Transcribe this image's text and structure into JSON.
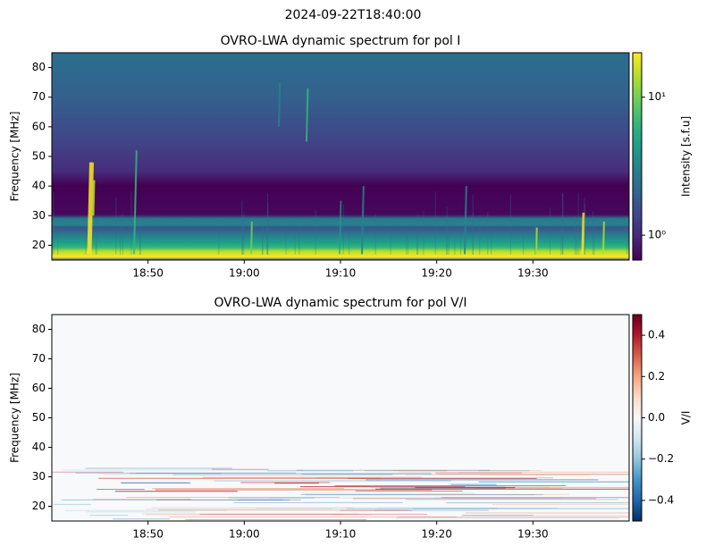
{
  "figure_title": "2024-09-22T18:40:00",
  "chart_data": [
    {
      "type": "heatmap",
      "title": "OVRO-LWA dynamic spectrum for pol I",
      "ylabel": "Frequency [MHz]",
      "xlim": [
        "18:40",
        "19:40"
      ],
      "xticks": [
        "18:50",
        "19:00",
        "19:10",
        "19:20",
        "19:30"
      ],
      "ylim": [
        15,
        85
      ],
      "yticks": [
        20,
        30,
        40,
        50,
        60,
        70,
        80
      ],
      "colorbar": {
        "label": "Intensity [s.f.u]",
        "scale": "log",
        "lim": [
          0.66,
          21
        ],
        "ticks": [
          {
            "value": 1,
            "label": "10⁰"
          },
          {
            "value": 10,
            "label": "10¹"
          }
        ],
        "colormap": [
          "#440154",
          "#482878",
          "#3e4989",
          "#31688e",
          "#26828e",
          "#1f9e89",
          "#35b779",
          "#6ece58",
          "#b5de2b",
          "#fde725"
        ]
      }
    },
    {
      "type": "heatmap",
      "title": "OVRO-LWA dynamic spectrum for pol V/I",
      "ylabel": "Frequency [MHz]",
      "xlim": [
        "18:40",
        "19:40"
      ],
      "xticks": [
        "18:50",
        "19:00",
        "19:10",
        "19:20",
        "19:30"
      ],
      "ylim": [
        15,
        85
      ],
      "yticks": [
        20,
        30,
        40,
        50,
        60,
        70,
        80
      ],
      "colorbar": {
        "label": "V/I",
        "scale": "linear",
        "lim": [
          -0.5,
          0.5
        ],
        "ticks": [
          {
            "value": -0.4,
            "label": "−0.4"
          },
          {
            "value": -0.2,
            "label": "−0.2"
          },
          {
            "value": 0,
            "label": "0.0"
          },
          0.2,
          0.4
        ],
        "colormap": [
          "#053061",
          "#2166ac",
          "#4393c3",
          "#92c5de",
          "#d1e5f0",
          "#f7f7f7",
          "#fddbc7",
          "#f4a582",
          "#d6604d",
          "#b2182b",
          "#67001f"
        ]
      }
    }
  ]
}
